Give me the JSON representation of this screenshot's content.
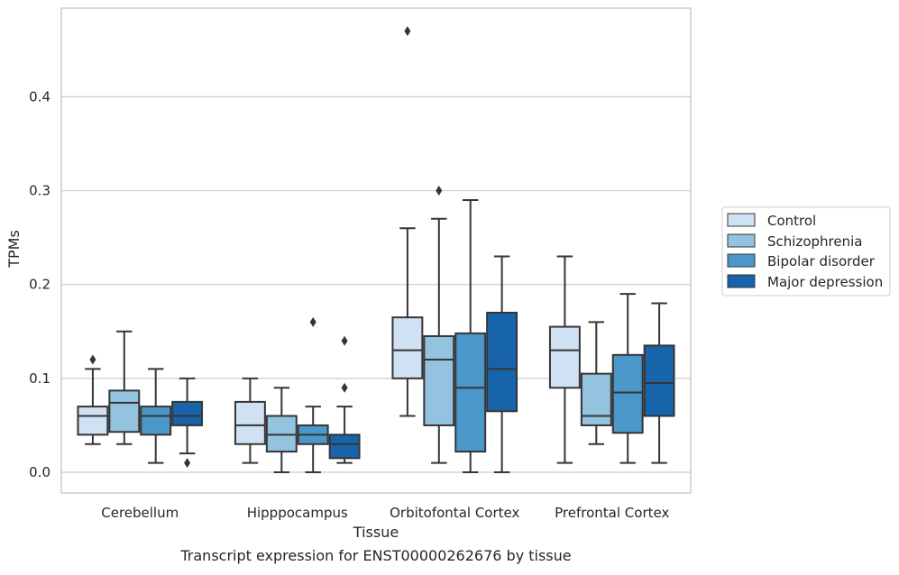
{
  "chart_data": {
    "type": "box",
    "title": "",
    "caption": "Transcript expression for ENST00000262676 by tissue",
    "xlabel": "Tissue",
    "ylabel": "TPMs",
    "ylim": [
      -0.023,
      0.493
    ],
    "yticks": [
      "0.0",
      "0.1",
      "0.2",
      "0.3",
      "0.4"
    ],
    "ytick_values": [
      0.0,
      0.1,
      0.2,
      0.3,
      0.4
    ],
    "grid": "horizontal",
    "legend_position": "right",
    "categories": [
      "Cerebellum",
      "Hipppocampus",
      "Orbitofontal Cortex",
      "Prefrontal Cortex"
    ],
    "series": [
      {
        "name": "Control",
        "color": "#cfe1f2",
        "boxes": [
          {
            "whislo": 0.03,
            "q1": 0.04,
            "med": 0.06,
            "q3": 0.07,
            "whishi": 0.11,
            "fliers": [
              0.12
            ]
          },
          {
            "whislo": 0.01,
            "q1": 0.03,
            "med": 0.05,
            "q3": 0.075,
            "whishi": 0.1,
            "fliers": []
          },
          {
            "whislo": 0.06,
            "q1": 0.1,
            "med": 0.13,
            "q3": 0.165,
            "whishi": 0.26,
            "fliers": [
              0.47
            ]
          },
          {
            "whislo": 0.01,
            "q1": 0.09,
            "med": 0.13,
            "q3": 0.155,
            "whishi": 0.23,
            "fliers": []
          }
        ]
      },
      {
        "name": "Schizophrenia",
        "color": "#93c3df",
        "boxes": [
          {
            "whislo": 0.03,
            "q1": 0.043,
            "med": 0.074,
            "q3": 0.087,
            "whishi": 0.15,
            "fliers": []
          },
          {
            "whislo": 0.0,
            "q1": 0.022,
            "med": 0.04,
            "q3": 0.06,
            "whishi": 0.09,
            "fliers": []
          },
          {
            "whislo": 0.01,
            "q1": 0.05,
            "med": 0.12,
            "q3": 0.145,
            "whishi": 0.27,
            "fliers": [
              0.3
            ]
          },
          {
            "whislo": 0.03,
            "q1": 0.05,
            "med": 0.06,
            "q3": 0.105,
            "whishi": 0.16,
            "fliers": []
          }
        ]
      },
      {
        "name": "Bipolar disorder",
        "color": "#4b97c9",
        "boxes": [
          {
            "whislo": 0.01,
            "q1": 0.04,
            "med": 0.06,
            "q3": 0.07,
            "whishi": 0.11,
            "fliers": []
          },
          {
            "whislo": 0.0,
            "q1": 0.03,
            "med": 0.04,
            "q3": 0.05,
            "whishi": 0.07,
            "fliers": [
              0.16
            ]
          },
          {
            "whislo": 0.0,
            "q1": 0.022,
            "med": 0.09,
            "q3": 0.148,
            "whishi": 0.29,
            "fliers": []
          },
          {
            "whislo": 0.01,
            "q1": 0.042,
            "med": 0.085,
            "q3": 0.125,
            "whishi": 0.19,
            "fliers": []
          }
        ]
      },
      {
        "name": "Major depression",
        "color": "#1764ab",
        "boxes": [
          {
            "whislo": 0.02,
            "q1": 0.05,
            "med": 0.06,
            "q3": 0.075,
            "whishi": 0.1,
            "fliers": [
              0.01
            ]
          },
          {
            "whislo": 0.01,
            "q1": 0.015,
            "med": 0.03,
            "q3": 0.04,
            "whishi": 0.07,
            "fliers": [
              0.14,
              0.09
            ]
          },
          {
            "whislo": 0.0,
            "q1": 0.065,
            "med": 0.11,
            "q3": 0.17,
            "whishi": 0.23,
            "fliers": []
          },
          {
            "whislo": 0.01,
            "q1": 0.06,
            "med": 0.095,
            "q3": 0.135,
            "whishi": 0.18,
            "fliers": []
          }
        ]
      }
    ]
  },
  "style": {
    "line_color": "#353535",
    "grid_color": "#cccccc",
    "frame_color": "#cccccc"
  }
}
